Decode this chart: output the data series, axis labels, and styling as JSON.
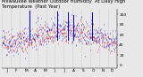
{
  "title": "Milwaukee Weather Outdoor Humidity At Daily High Temperature (Past Year)",
  "background_color": "#e8e8e8",
  "plot_bg": "#e8e8e8",
  "ylim": [
    -5,
    110
  ],
  "yticks": [
    0,
    20,
    40,
    60,
    80,
    100
  ],
  "ytick_labels": [
    "0",
    "20",
    "40",
    "60",
    "80",
    "100"
  ],
  "n_points": 365,
  "blue_color": "#0000dd",
  "red_color": "#dd0000",
  "grid_color": "#999999",
  "title_fontsize": 3.8,
  "tick_fontsize": 3.2,
  "spike_positions": [
    88,
    175,
    210,
    225,
    285
  ],
  "spike_heights": [
    107,
    106,
    104,
    98,
    103
  ]
}
